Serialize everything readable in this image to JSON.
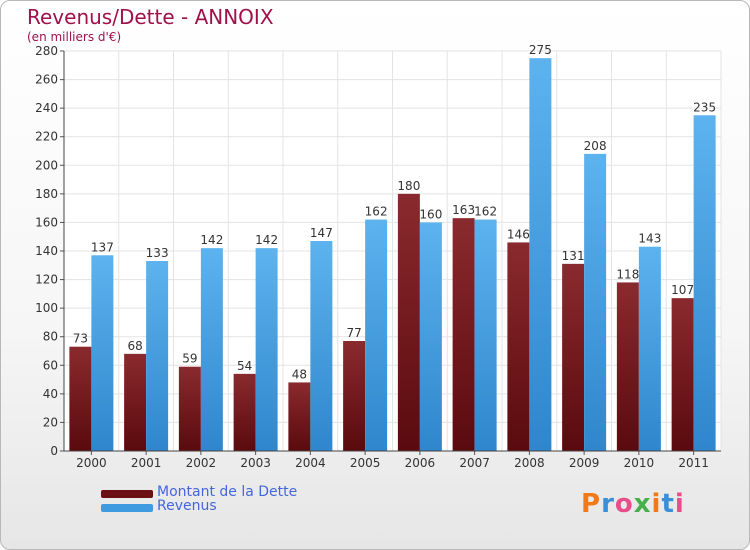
{
  "title": "Revenus/Dette - ANNOIX",
  "subtitle": "(en milliers d'€)",
  "colors": {
    "dette": "#7a1c22",
    "revenus": "#4ea6e6",
    "title": "#a0104a",
    "legend_text": "#4466dd"
  },
  "legend": {
    "items": [
      {
        "label": "Montant de la Dette",
        "color": "#6b0f14"
      },
      {
        "label": "Revenus",
        "color": "#3f9be0"
      }
    ]
  },
  "logo": {
    "text": "Proxiti"
  },
  "chart_data": {
    "type": "bar",
    "categories": [
      "2000",
      "2001",
      "2002",
      "2003",
      "2004",
      "2005",
      "2006",
      "2007",
      "2008",
      "2009",
      "2010",
      "2011"
    ],
    "series": [
      {
        "name": "Montant de la Dette",
        "values": [
          73,
          68,
          59,
          54,
          48,
          77,
          180,
          163,
          146,
          131,
          118,
          107
        ]
      },
      {
        "name": "Revenus",
        "values": [
          137,
          133,
          142,
          142,
          147,
          162,
          160,
          162,
          275,
          208,
          143,
          235
        ]
      }
    ],
    "ylim": [
      0,
      280
    ],
    "yticks": [
      0,
      20,
      40,
      60,
      80,
      100,
      120,
      140,
      160,
      180,
      200,
      220,
      240,
      260,
      280
    ],
    "grid": true,
    "legend_position": "bottom-left"
  }
}
